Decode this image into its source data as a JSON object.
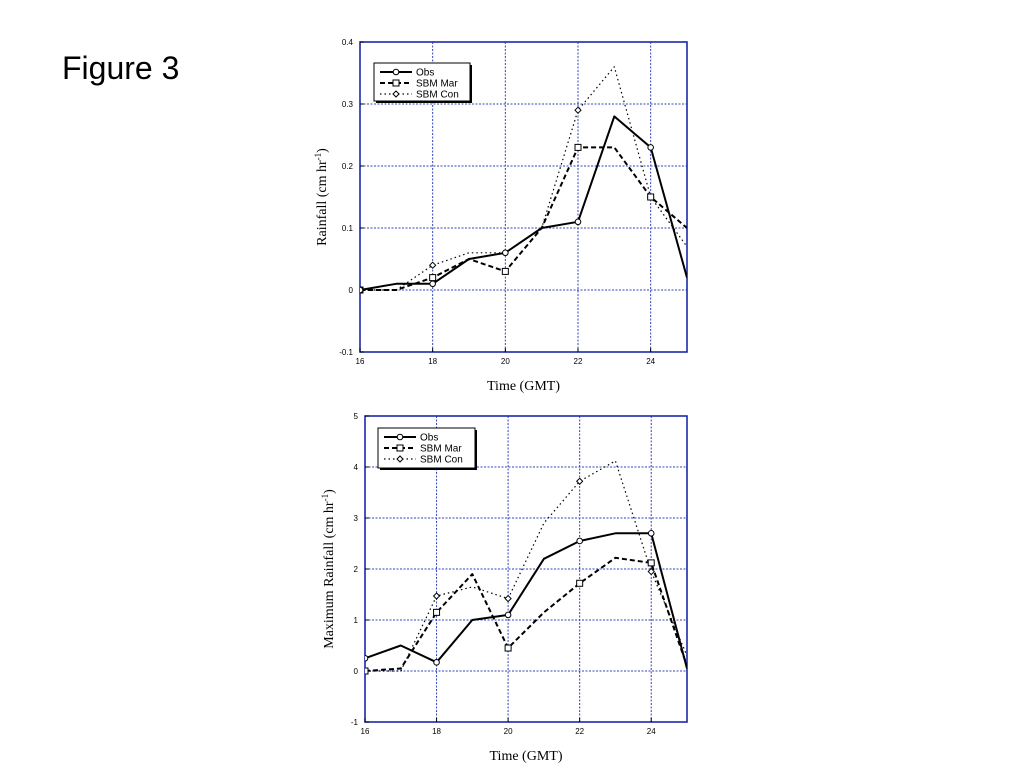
{
  "figure": {
    "title": "Figure 3"
  },
  "chart_data": [
    {
      "type": "line",
      "x": [
        16,
        17,
        18,
        19,
        20,
        21,
        22,
        23,
        24,
        25
      ],
      "xlim": [
        16,
        25
      ],
      "ylim": [
        -0.1,
        0.4
      ],
      "xticks": [
        16,
        18,
        20,
        22,
        24
      ],
      "yticks": [
        -0.1,
        0,
        0.1,
        0.2,
        0.3,
        0.4
      ],
      "ytick_labels": [
        "-0.1",
        "0",
        "0.1",
        "0.2",
        "0.3",
        "0.4"
      ],
      "xlabel": "Time (GMT)",
      "ylabel": "Rainfall (cm hr",
      "ylabel_sup": "-1",
      "ylabel_tail": ")",
      "grid": true,
      "legend_position": "top-left",
      "series": [
        {
          "name": "Obs",
          "style": "solid",
          "marker": "circle",
          "values": [
            0,
            0.01,
            0.01,
            0.05,
            0.06,
            0.1,
            0.11,
            0.28,
            0.23,
            0.02
          ],
          "marker_x": [
            16,
            18,
            20,
            22,
            24
          ]
        },
        {
          "name": "SBM Mar",
          "style": "dashed",
          "marker": "square",
          "values": [
            0,
            0,
            0.02,
            0.05,
            0.03,
            0.1,
            0.23,
            0.23,
            0.15,
            0.1
          ],
          "marker_x": [
            16,
            18,
            20,
            22,
            24
          ]
        },
        {
          "name": "SBM Con",
          "style": "dotted",
          "marker": "diamond",
          "values": [
            0,
            0,
            0.04,
            0.06,
            0.06,
            0.1,
            0.29,
            0.36,
            0.15,
            0.07
          ],
          "marker_x": [
            16,
            18,
            22,
            24
          ]
        }
      ]
    },
    {
      "type": "line",
      "x": [
        16,
        17,
        18,
        19,
        20,
        21,
        22,
        23,
        24,
        25
      ],
      "xlim": [
        16,
        25
      ],
      "ylim": [
        -1,
        5
      ],
      "xticks": [
        16,
        18,
        20,
        22,
        24
      ],
      "yticks": [
        -1,
        0,
        1,
        2,
        3,
        4,
        5
      ],
      "ytick_labels": [
        "-1",
        "0",
        "1",
        "2",
        "3",
        "4",
        "5"
      ],
      "xlabel": "Time (GMT)",
      "ylabel": "Maximum Rainfall (cm hr",
      "ylabel_sup": "-1",
      "ylabel_tail": ")",
      "grid": true,
      "legend_position": "top-left",
      "series": [
        {
          "name": "Obs",
          "style": "solid",
          "marker": "circle",
          "values": [
            0.25,
            0.5,
            0.17,
            1.0,
            1.1,
            2.2,
            2.55,
            2.7,
            2.7,
            0.05
          ],
          "marker_x": [
            16,
            18,
            20,
            22,
            24
          ]
        },
        {
          "name": "SBM Mar",
          "style": "dashed",
          "marker": "square",
          "values": [
            0,
            0.05,
            1.15,
            1.9,
            0.45,
            1.15,
            1.72,
            2.22,
            2.12,
            0.1
          ],
          "marker_x": [
            16,
            18,
            20,
            22,
            24
          ]
        },
        {
          "name": "SBM Con",
          "style": "dotted",
          "marker": "diamond",
          "values": [
            0,
            0,
            1.47,
            1.65,
            1.42,
            2.9,
            3.72,
            4.12,
            1.95,
            0.3
          ],
          "marker_x": [
            16,
            18,
            20,
            22,
            24
          ]
        }
      ]
    }
  ]
}
